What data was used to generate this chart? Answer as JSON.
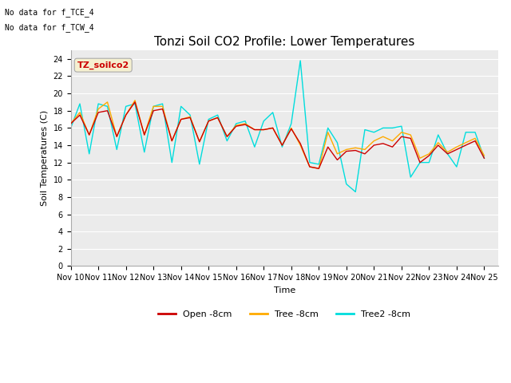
{
  "title": "Tonzi Soil CO2 Profile: Lower Temperatures",
  "xlabel": "Time",
  "ylabel": "Soil Temperatures (C)",
  "note_lines": [
    "No data for f_TCE_4",
    "No data for f_TCW_4"
  ],
  "watermark": "TZ_soilco2",
  "ylim": [
    0,
    25
  ],
  "yticks": [
    0,
    2,
    4,
    6,
    8,
    10,
    12,
    14,
    16,
    18,
    20,
    22,
    24
  ],
  "xtick_labels": [
    "Nov 10",
    "Nov 11",
    "Nov 12",
    "Nov 13",
    "Nov 14",
    "Nov 15",
    "Nov 16",
    "Nov 17",
    "Nov 18",
    "Nov 19",
    "Nov 20",
    "Nov 21",
    "Nov 22",
    "Nov 23",
    "Nov 24",
    "Nov 25"
  ],
  "legend_entries": [
    "Open -8cm",
    "Tree -8cm",
    "Tree2 -8cm"
  ],
  "line_colors": [
    "#cc0000",
    "#ffaa00",
    "#00dddd"
  ],
  "fig_facecolor": "#ffffff",
  "ax_facecolor": "#ebebeb",
  "title_fontsize": 11,
  "axis_fontsize": 8,
  "tick_fontsize": 7,
  "x": [
    0,
    0.33,
    0.67,
    1,
    1.33,
    1.67,
    2,
    2.33,
    2.67,
    3,
    3.33,
    3.67,
    4,
    4.33,
    4.67,
    5,
    5.33,
    5.67,
    6,
    6.33,
    6.67,
    7,
    7.33,
    7.67,
    8,
    8.33,
    8.67,
    9,
    9.33,
    9.67,
    10,
    10.33,
    10.67,
    11,
    11.33,
    11.67,
    12,
    12.33,
    12.67,
    13,
    13.33,
    13.67,
    14,
    14.33,
    14.67,
    15
  ],
  "open_8cm": [
    16.5,
    17.5,
    15.2,
    17.8,
    18.0,
    15.0,
    17.5,
    19.0,
    15.2,
    18.0,
    18.2,
    14.5,
    17.0,
    17.2,
    14.4,
    16.8,
    17.2,
    15.0,
    16.2,
    16.4,
    15.8,
    15.8,
    16.0,
    14.0,
    15.9,
    14.2,
    11.5,
    11.3,
    13.8,
    12.3,
    13.3,
    13.4,
    13.0,
    14.0,
    14.2,
    13.8,
    15.0,
    14.8,
    12.0,
    12.8,
    14.0,
    13.0,
    13.5,
    14.0,
    14.5,
    12.5
  ],
  "tree_8cm": [
    16.5,
    17.8,
    15.2,
    18.2,
    19.0,
    15.0,
    17.5,
    19.2,
    15.2,
    18.5,
    18.5,
    14.5,
    17.0,
    17.3,
    14.4,
    16.8,
    17.2,
    15.0,
    16.3,
    16.5,
    15.8,
    15.8,
    16.0,
    14.0,
    16.0,
    14.0,
    11.5,
    11.3,
    15.5,
    13.0,
    13.5,
    13.7,
    13.5,
    14.5,
    15.0,
    14.5,
    15.5,
    15.2,
    12.5,
    13.0,
    14.3,
    13.2,
    13.8,
    14.3,
    14.8,
    12.8
  ],
  "tree2_8cm": [
    16.0,
    18.8,
    13.0,
    18.8,
    18.5,
    13.5,
    18.5,
    18.8,
    13.2,
    18.5,
    18.8,
    12.0,
    18.5,
    17.5,
    11.8,
    17.0,
    17.5,
    14.5,
    16.5,
    16.8,
    13.8,
    16.8,
    17.8,
    13.8,
    16.5,
    23.8,
    12.0,
    11.8,
    16.0,
    14.3,
    9.5,
    8.6,
    15.8,
    15.5,
    16.0,
    16.0,
    16.2,
    10.3,
    12.0,
    12.0,
    15.2,
    13.0,
    11.5,
    15.5,
    15.5,
    12.5
  ]
}
